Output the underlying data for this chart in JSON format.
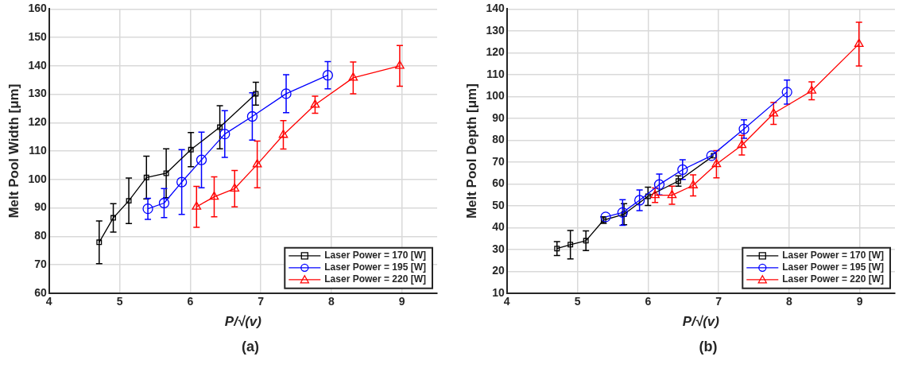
{
  "chart_data": [
    {
      "type": "line",
      "xlabel": "P/√(v)",
      "ylabel": "Melt Pool Width [μm]",
      "annotations": [
        "(a)"
      ],
      "xlim": [
        4,
        9.5
      ],
      "xticks": [
        4,
        5,
        6,
        7,
        8,
        9
      ],
      "ylim": [
        60,
        160
      ],
      "yticks": [
        60,
        70,
        80,
        90,
        100,
        110,
        120,
        130,
        140,
        150,
        160
      ],
      "grid": true,
      "legend": "bottom right",
      "series": [
        {
          "name": "Laser Power = 170 [W]",
          "color": "#000000",
          "marker": "square",
          "x": [
            4.71,
            4.91,
            5.13,
            5.38,
            5.66,
            6.01,
            6.42,
            6.93
          ],
          "values": [
            77.9,
            86.5,
            92.5,
            100.7,
            102.2,
            110.5,
            118.4,
            130.2
          ],
          "errors": [
            7.5,
            5,
            8,
            7.5,
            8.6,
            6,
            7.6,
            4
          ]
        },
        {
          "name": "Laser Power = 195 [W]",
          "color": "#0000ff",
          "marker": "circle",
          "x": [
            5.4,
            5.63,
            5.88,
            6.16,
            6.49,
            6.88,
            7.36,
            7.95
          ],
          "values": [
            89.7,
            91.7,
            99.1,
            106.9,
            116,
            122.2,
            130.2,
            136.7
          ],
          "errors": [
            3.7,
            5.1,
            11.4,
            9.8,
            8.2,
            8.3,
            6.7,
            4.8
          ]
        },
        {
          "name": "Laser Power = 220 [W]",
          "color": "#ff0000",
          "marker": "triangle",
          "x": [
            6.09,
            6.34,
            6.63,
            6.95,
            7.32,
            7.77,
            8.31,
            8.97
          ],
          "values": [
            90.4,
            93.9,
            96.8,
            105.3,
            115.7,
            126.3,
            135.8,
            140
          ],
          "errors": [
            7.2,
            7,
            6.4,
            8.2,
            5,
            3,
            5.6,
            7.2
          ]
        }
      ]
    },
    {
      "type": "line",
      "xlabel": "P/√(v)",
      "ylabel": "Melt Pool Depth [μm]",
      "annotations": [
        "(b)"
      ],
      "xlim": [
        4,
        9.5
      ],
      "xticks": [
        4,
        5,
        6,
        7,
        8,
        9
      ],
      "ylim": [
        10,
        140
      ],
      "yticks": [
        10,
        20,
        30,
        40,
        50,
        60,
        70,
        80,
        90,
        100,
        110,
        120,
        130,
        140
      ],
      "grid": true,
      "legend": "bottom right",
      "series": [
        {
          "name": "Laser Power = 170 [W]",
          "color": "#000000",
          "marker": "square",
          "x": [
            4.71,
            4.9,
            5.12,
            5.37,
            5.66,
            6,
            6.43,
            6.93
          ],
          "values": [
            30.4,
            32.2,
            34,
            43.4,
            46.1,
            54.3,
            61.3,
            72.9
          ],
          "errors": [
            3.2,
            6.5,
            4.5,
            1.5,
            4.8,
            4.2,
            2.4,
            null
          ]
        },
        {
          "name": "Laser Power = 195 [W]",
          "color": "#0000ff",
          "marker": "circle",
          "x": [
            5.4,
            5.64,
            5.88,
            6.16,
            6.49,
            6.9,
            7.36,
            7.97
          ],
          "values": [
            44.9,
            46.9,
            52.5,
            59.7,
            66.5,
            72.9,
            85.1,
            102
          ],
          "errors": [
            null,
            5.9,
            4.7,
            4.8,
            4.5,
            null,
            4.2,
            5.5
          ]
        },
        {
          "name": "Laser Power = 220 [W]",
          "color": "#ff0000",
          "marker": "triangle",
          "x": [
            6.1,
            6.34,
            6.64,
            6.97,
            7.33,
            7.78,
            8.32,
            8.99
          ],
          "values": [
            54.8,
            54.8,
            59.3,
            69,
            77.7,
            92.2,
            102.6,
            124
          ],
          "errors": [
            3.3,
            4.1,
            4.8,
            6.2,
            4.5,
            5,
            4.1,
            10
          ]
        }
      ]
    }
  ]
}
